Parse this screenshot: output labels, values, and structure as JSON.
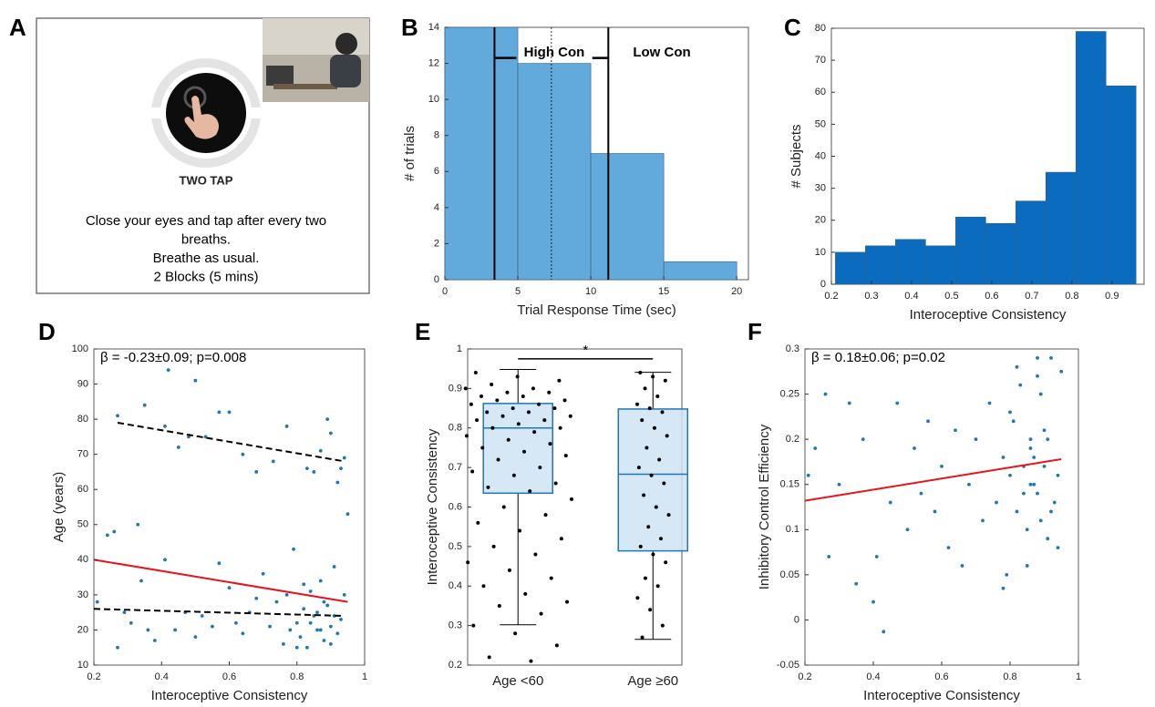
{
  "panel_a": {
    "label": "A",
    "caption": "TWO TAP",
    "instructions": [
      "Close your eyes and tap after every two",
      "breaths.",
      "Breathe as usual.",
      "2 Blocks (5 mins)"
    ]
  },
  "chart_data": [
    {
      "type": "histogram",
      "panel": "B",
      "xlabel": "Trial Response Time (sec)",
      "ylabel": "# of trials",
      "bins": [
        0,
        5,
        10,
        15,
        20
      ],
      "values": [
        14,
        12,
        7,
        1
      ],
      "color": "#62a9dc",
      "xlim": [
        0,
        20.8
      ],
      "ylim": [
        0,
        14
      ],
      "xticks": [
        0,
        5,
        10,
        15,
        20
      ],
      "yticks": [
        0,
        2,
        4,
        6,
        8,
        10,
        12,
        14
      ],
      "vlines": [
        {
          "x": 3.4,
          "style": "solid"
        },
        {
          "x": 11.2,
          "style": "solid"
        },
        {
          "x": 7.3,
          "style": "dotted"
        }
      ],
      "brackets": [
        {
          "x": [
            3.4,
            4.9
          ],
          "y": 12.3
        },
        {
          "x": [
            10.1,
            11.2
          ],
          "y": 12.3
        }
      ],
      "annotations": [
        "High Con",
        "Low Con"
      ]
    },
    {
      "type": "histogram",
      "panel": "C",
      "xlabel": "Interoceptive Consistency",
      "ylabel": "# Subjects",
      "bins": [
        0.21,
        0.285,
        0.36,
        0.435,
        0.51,
        0.585,
        0.66,
        0.735,
        0.81,
        0.885,
        0.96
      ],
      "values": [
        10,
        12,
        14,
        12,
        21,
        19,
        26,
        35,
        79,
        62
      ],
      "color": "#0b6cbf",
      "xlim": [
        0.2,
        0.98
      ],
      "ylim": [
        0,
        80
      ],
      "xticks": [
        0.2,
        0.3,
        0.4,
        0.5,
        0.6,
        0.7,
        0.8,
        0.9
      ],
      "yticks": [
        0,
        10,
        20,
        30,
        40,
        50,
        60,
        70,
        80
      ]
    },
    {
      "type": "scatter",
      "panel": "D",
      "xlabel": "Interoceptive Consistency",
      "ylabel": "Age (years)",
      "annotation": "β = -0.23±0.09; p=0.008",
      "color": "#1f77b4",
      "x": [
        0.21,
        0.24,
        0.27,
        0.29,
        0.31,
        0.34,
        0.36,
        0.38,
        0.41,
        0.44,
        0.47,
        0.5,
        0.52,
        0.55,
        0.57,
        0.6,
        0.62,
        0.64,
        0.66,
        0.68,
        0.7,
        0.72,
        0.74,
        0.76,
        0.77,
        0.78,
        0.79,
        0.8,
        0.81,
        0.82,
        0.83,
        0.84,
        0.85,
        0.86,
        0.87,
        0.88,
        0.89,
        0.9,
        0.91,
        0.92,
        0.93,
        0.94,
        0.8,
        0.84,
        0.88,
        0.9,
        0.86,
        0.82,
        0.26,
        0.27,
        0.33,
        0.35,
        0.41,
        0.42,
        0.45,
        0.48,
        0.5,
        0.53,
        0.57,
        0.6,
        0.64,
        0.68,
        0.73,
        0.77,
        0.83,
        0.85,
        0.87,
        0.89,
        0.9,
        0.92,
        0.93,
        0.94,
        0.95,
        0.91,
        0.87
      ],
      "values": [
        28,
        47,
        15,
        25,
        22,
        34,
        20,
        17,
        40,
        20,
        25,
        18,
        24,
        21,
        39,
        32,
        22,
        19,
        25,
        29,
        36,
        21,
        28,
        16,
        30,
        20,
        43,
        22,
        18,
        26,
        15,
        31,
        24,
        20,
        34,
        17,
        27,
        21,
        38,
        19,
        23,
        30,
        15,
        22,
        28,
        16,
        25,
        33,
        48,
        81,
        50,
        84,
        78,
        94,
        72,
        75,
        91,
        75,
        82,
        82,
        70,
        65,
        68,
        78,
        66,
        65,
        71,
        80,
        76,
        62,
        66,
        69,
        53,
        24,
        20
      ],
      "fit_lines": [
        {
          "x": [
            0.2,
            0.95
          ],
          "values": [
            40,
            28
          ],
          "color": "#e8141b",
          "dashed": false
        },
        {
          "x": [
            0.27,
            0.94
          ],
          "values": [
            79,
            68
          ],
          "color": "#000000",
          "dashed": true
        },
        {
          "x": [
            0.2,
            0.94
          ],
          "values": [
            26,
            24
          ],
          "color": "#000000",
          "dashed": true
        }
      ],
      "xlim": [
        0.2,
        1
      ],
      "ylim": [
        10,
        100
      ],
      "xticks": [
        0.2,
        0.4,
        0.6,
        0.8,
        1
      ],
      "yticks": [
        10,
        20,
        30,
        40,
        50,
        60,
        70,
        80,
        90,
        100
      ]
    },
    {
      "type": "box",
      "panel": "E",
      "ylabel": "Interoceptive Consistency",
      "categories": [
        "Age <60",
        "Age ≥60"
      ],
      "boxes": [
        {
          "whislo": 0.302,
          "q1": 0.635,
          "med": 0.8,
          "q3": 0.862,
          "whishi": 0.948
        },
        {
          "whislo": 0.265,
          "q1": 0.489,
          "med": 0.683,
          "q3": 0.848,
          "whishi": 0.941
        }
      ],
      "points": [
        [
          0.94,
          0.93,
          0.92,
          0.91,
          0.9,
          0.9,
          0.89,
          0.89,
          0.88,
          0.88,
          0.87,
          0.87,
          0.86,
          0.86,
          0.85,
          0.85,
          0.84,
          0.84,
          0.83,
          0.83,
          0.82,
          0.82,
          0.81,
          0.8,
          0.8,
          0.79,
          0.78,
          0.77,
          0.76,
          0.75,
          0.74,
          0.73,
          0.72,
          0.7,
          0.69,
          0.68,
          0.66,
          0.65,
          0.64,
          0.62,
          0.6,
          0.58,
          0.56,
          0.54,
          0.52,
          0.5,
          0.48,
          0.46,
          0.44,
          0.42,
          0.4,
          0.38,
          0.36,
          0.35,
          0.33,
          0.3,
          0.28,
          0.25,
          0.22,
          0.21
        ],
        [
          0.94,
          0.93,
          0.92,
          0.9,
          0.88,
          0.86,
          0.85,
          0.84,
          0.82,
          0.8,
          0.78,
          0.75,
          0.72,
          0.7,
          0.68,
          0.66,
          0.63,
          0.6,
          0.58,
          0.55,
          0.52,
          0.5,
          0.48,
          0.46,
          0.42,
          0.4,
          0.37,
          0.34,
          0.3,
          0.27
        ]
      ],
      "color": "#1f77b4",
      "box_fill": "#cfe3f3",
      "significance": {
        "label": "*",
        "y": 0.975
      },
      "ylim": [
        0.2,
        1
      ],
      "yticks": [
        0.2,
        0.3,
        0.4,
        0.5,
        0.6,
        0.7,
        0.8,
        0.9,
        1
      ]
    },
    {
      "type": "scatter",
      "panel": "F",
      "xlabel": "Interoceptive Consistency",
      "ylabel": "Inhibitory Control Efficiency",
      "annotation": "β = 0.18±0.06; p=0.02",
      "color": "#1f77b4",
      "x": [
        0.21,
        0.23,
        0.26,
        0.27,
        0.3,
        0.33,
        0.35,
        0.37,
        0.4,
        0.41,
        0.43,
        0.45,
        0.47,
        0.5,
        0.52,
        0.54,
        0.56,
        0.58,
        0.6,
        0.62,
        0.64,
        0.66,
        0.68,
        0.7,
        0.72,
        0.74,
        0.76,
        0.78,
        0.79,
        0.8,
        0.81,
        0.82,
        0.83,
        0.84,
        0.85,
        0.86,
        0.87,
        0.88,
        0.89,
        0.9,
        0.91,
        0.92,
        0.93,
        0.94,
        0.8,
        0.82,
        0.85,
        0.87,
        0.88,
        0.9,
        0.92,
        0.84,
        0.86,
        0.89,
        0.91,
        0.78,
        0.94,
        0.95,
        0.88,
        0.86
      ],
      "values": [
        0.16,
        0.19,
        0.25,
        0.07,
        0.15,
        0.24,
        0.04,
        0.2,
        0.02,
        0.07,
        -0.013,
        0.13,
        0.24,
        0.1,
        0.19,
        0.14,
        0.22,
        0.12,
        0.17,
        0.08,
        0.21,
        0.06,
        0.15,
        0.2,
        0.11,
        0.24,
        0.13,
        0.18,
        0.05,
        0.16,
        0.22,
        0.12,
        0.26,
        0.14,
        0.06,
        0.19,
        0.15,
        0.27,
        0.11,
        0.17,
        0.2,
        0.29,
        0.13,
        0.16,
        0.23,
        0.28,
        0.1,
        0.18,
        0.14,
        0.21,
        0.12,
        0.17,
        0.15,
        0.25,
        0.09,
        0.035,
        0.08,
        0.275,
        0.29,
        0.2
      ],
      "fit_lines": [
        {
          "x": [
            0.2,
            0.95
          ],
          "values": [
            0.132,
            0.178
          ],
          "color": "#e8141b",
          "dashed": false
        }
      ],
      "xlim": [
        0.2,
        1
      ],
      "ylim": [
        -0.05,
        0.3
      ],
      "xticks": [
        0.2,
        0.4,
        0.6,
        0.8,
        1
      ],
      "yticks": [
        -0.05,
        0,
        0.05,
        0.1,
        0.15,
        0.2,
        0.25,
        0.3
      ]
    }
  ]
}
